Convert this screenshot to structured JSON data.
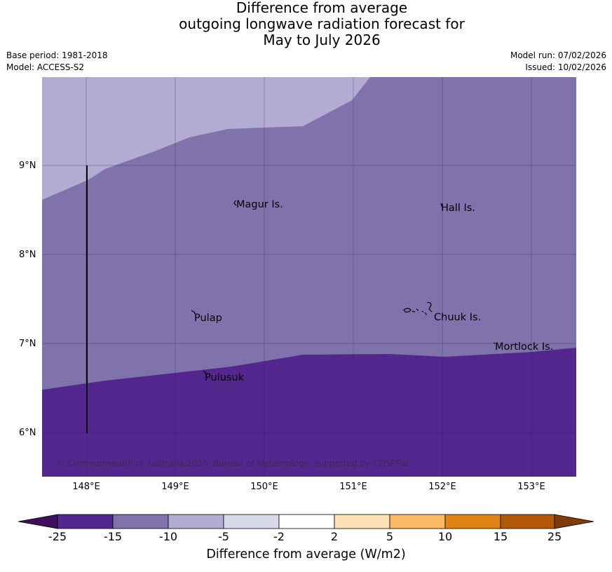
{
  "title": {
    "line1": "Difference from average",
    "line2": "outgoing longwave radiation forecast for",
    "line3": "May to July 2026"
  },
  "meta": {
    "base_period": "Base period: 1981-2018",
    "model": "Model: ACCESS-S2",
    "model_run": "Model run: 07/02/2026",
    "issued": "Issued: 10/02/2026"
  },
  "map": {
    "lat_labels": [
      "9°N",
      "8°N",
      "7°N",
      "6°N"
    ],
    "lon_labels": [
      "148°E",
      "149°E",
      "150°E",
      "151°E",
      "152°E",
      "153°E"
    ],
    "places": [
      {
        "name": "Magur Is.",
        "lon": 149.67,
        "lat": 8.55
      },
      {
        "name": "Hall Is.",
        "lon": 151.98,
        "lat": 8.52
      },
      {
        "name": "Pulap",
        "lon": 149.17,
        "lat": 7.35
      },
      {
        "name": "Chuuk Is.",
        "lon": 151.85,
        "lat": 7.42
      },
      {
        "name": "Mortlock Is.",
        "lon": 152.58,
        "lat": 7.0
      },
      {
        "name": "Pulusuk",
        "lon": 149.3,
        "lat": 6.68
      }
    ],
    "copyright": "© Commonwealth of Australia 2026, Bureau of Meteorology, supported by COSPPac",
    "category_colors": {
      "minus15_to_minus25": "#54278f",
      "minus10_to_minus15": "#8073ac",
      "minus5_to_minus10": "#b2abd2"
    }
  },
  "colorbar": {
    "ticks": [
      "-25",
      "-15",
      "-10",
      "-5",
      "-2",
      "2",
      "5",
      "10",
      "15",
      "25"
    ],
    "colors": [
      "#3f0f5e",
      "#54278f",
      "#8073ac",
      "#b2abd2",
      "#d8daeb",
      "#ffffff",
      "#fee0b6",
      "#fdb863",
      "#e08214",
      "#b35806",
      "#7f3b08"
    ],
    "title": "Difference from average (W/m2)"
  }
}
